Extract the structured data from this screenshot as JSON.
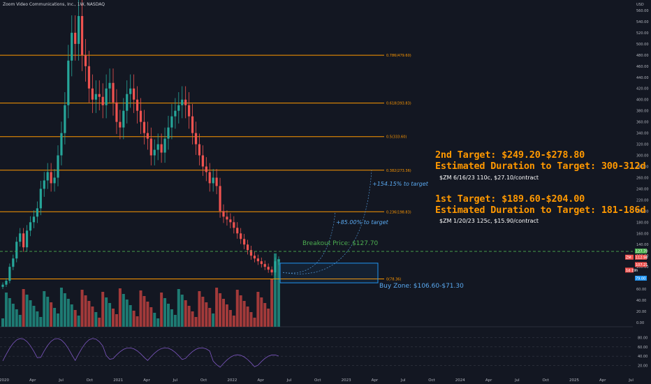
{
  "header": {
    "title": "Zoom Video Communications, Inc., 1W, NASDAQ"
  },
  "annotations": {
    "target2_line1": "2nd Target: $249.20-$278.80",
    "target2_line2": "Estimated Duration to Target: 300-312d",
    "target2_option": "$ZM 6/16/23 110c, $27.10/contract",
    "target1_line1": "1st Target: $189.60-$204.00",
    "target1_line2": "Estimated Duration to Target: 181-186d",
    "target1_option": "$ZM 1/20/23 125c, $15.90/contract",
    "breakout": "Breakout Price: $127.70",
    "buy_zone": "Buy Zone: $106.60-$71.30",
    "pct_to_target_2": "+154.15% to target",
    "pct_to_target_1": "+85.00% to target"
  },
  "colors": {
    "background": "#131722",
    "fib_line": "#ff9800",
    "up_candle": "#26a69a",
    "down_candle": "#ef5350",
    "up_volume": "#1e7b73",
    "down_volume": "#a33a3a",
    "buy_zone_border": "#2196f3",
    "rsi_line": "#7e57c2",
    "axis_text": "#b2b5be",
    "breakout_line": "#4caf50"
  },
  "chart_data": {
    "type": "candlestick",
    "symbol": "ZM",
    "timeframe": "1W",
    "exchange": "NASDAQ",
    "price_axis": {
      "label": "USD",
      "range": [
        0,
        575
      ],
      "ticks": [
        0,
        20,
        40,
        60,
        80,
        100,
        120,
        140,
        160,
        180,
        200,
        220,
        240,
        260,
        280,
        300,
        320,
        340,
        360,
        380,
        400,
        420,
        440,
        460,
        480,
        500,
        520,
        540,
        560
      ]
    },
    "time_axis": {
      "ticks": [
        "2020",
        "Apr",
        "Jul",
        "Oct",
        "2021",
        "Apr",
        "Jul",
        "Oct",
        "2022",
        "Apr",
        "Jul",
        "Oct",
        "2023",
        "Apr",
        "Jul",
        "Oct",
        "2024",
        "Apr",
        "Jul",
        "Oct",
        "2025",
        "Apr",
        "Jul"
      ]
    },
    "fib_levels": [
      {
        "label": "0.786(479.60)",
        "value": 479.6
      },
      {
        "label": "0.618(393.83)",
        "value": 393.83
      },
      {
        "label": "0.5(333.60)",
        "value": 333.6
      },
      {
        "label": "0.382(273.36)",
        "value": 273.36
      },
      {
        "label": "0.236(198.83)",
        "value": 198.83
      },
      {
        "label": "0(78.36)",
        "value": 78.36
      }
    ],
    "breakout_price": 127.7,
    "buy_zone": [
      71.3,
      106.6
    ],
    "price_tags": [
      {
        "text": "127.70",
        "value": 127.7,
        "color": "#4caf50"
      },
      {
        "text": "112.96",
        "value": 112.96,
        "color": "#ef5350"
      },
      {
        "text": "107.21",
        "value": 107.21,
        "color": "#ef5350"
      },
      {
        "text": "ZM",
        "value": 112.96,
        "color": "#ef5350"
      },
      {
        "text": "1d 19h",
        "value": 101,
        "color": "#ef5350"
      },
      {
        "text": "79.00",
        "value": 79.0,
        "color": "#2196f3"
      }
    ],
    "weekly_close": [
      68,
      75,
      100,
      115,
      145,
      160,
      135,
      165,
      180,
      190,
      205,
      240,
      255,
      270,
      250,
      260,
      300,
      340,
      390,
      470,
      520,
      500,
      550,
      480,
      460,
      420,
      400,
      410,
      405,
      390,
      420,
      430,
      395,
      360,
      350,
      380,
      410,
      420,
      400,
      380,
      360,
      340,
      330,
      300,
      310,
      320,
      305,
      330,
      350,
      370,
      380,
      390,
      400,
      390,
      370,
      340,
      320,
      300,
      280,
      270,
      250,
      260,
      245,
      200,
      190,
      185,
      180,
      170,
      160,
      150,
      140,
      130,
      120,
      115,
      110,
      105,
      100,
      95,
      90,
      110,
      112
    ],
    "rsi_axis": {
      "ticks": [
        20,
        40,
        60,
        80
      ]
    }
  }
}
